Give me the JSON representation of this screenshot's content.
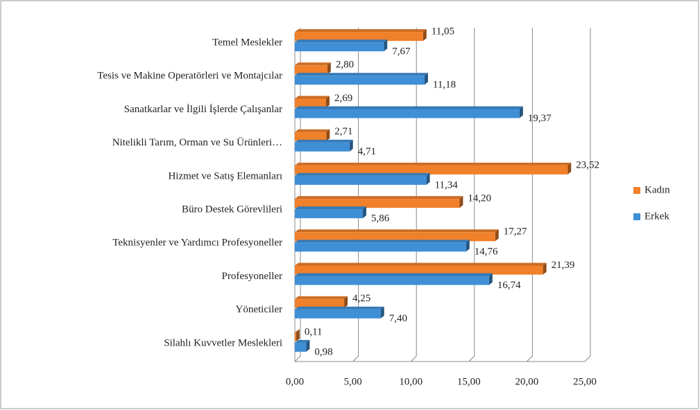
{
  "chart_data": {
    "type": "bar",
    "orientation": "horizontal",
    "categories": [
      "Temel Meslekler",
      "Tesis ve Makine Operatörleri ve Montajcılar",
      "Sanatkarlar ve İlgili İşlerde Çalışanlar",
      "Nitelikli Tarım, Orman ve Su Ürünleri…",
      "Hizmet ve Satış Elemanları",
      "Büro Destek Görevlileri",
      "Teknisyenler ve Yardımcı Profesyoneller",
      "Profesyoneller",
      "Yöneticiler",
      "Silahlı Kuvvetler Meslekleri"
    ],
    "series": [
      {
        "name": "Kadın",
        "color": "#f0802a",
        "values": [
          11.05,
          2.8,
          2.69,
          2.71,
          23.52,
          14.2,
          17.27,
          21.39,
          4.25,
          0.11
        ],
        "value_labels": [
          "11,05",
          "2,80",
          "2,69",
          "2,71",
          "23,52",
          "14,20",
          "17,27",
          "21,39",
          "4,25",
          "0,11"
        ]
      },
      {
        "name": "Erkek",
        "color": "#3f8fd6",
        "values": [
          7.67,
          11.18,
          19.37,
          4.71,
          11.34,
          5.86,
          14.76,
          16.74,
          7.4,
          0.98
        ],
        "value_labels": [
          "7,67",
          "11,18",
          "19,37",
          "4,71",
          "11,34",
          "5,86",
          "14,76",
          "16,74",
          "7,40",
          "0,98"
        ]
      }
    ],
    "xlim": [
      0,
      25
    ],
    "xticks": [
      {
        "value": 0,
        "label": "0,00"
      },
      {
        "value": 5,
        "label": "5,00"
      },
      {
        "value": 10,
        "label": "10,00"
      },
      {
        "value": 15,
        "label": "15,00"
      },
      {
        "value": 20,
        "label": "20,00"
      },
      {
        "value": 25,
        "label": "25,00"
      }
    ],
    "grid": true,
    "legend": "right"
  }
}
